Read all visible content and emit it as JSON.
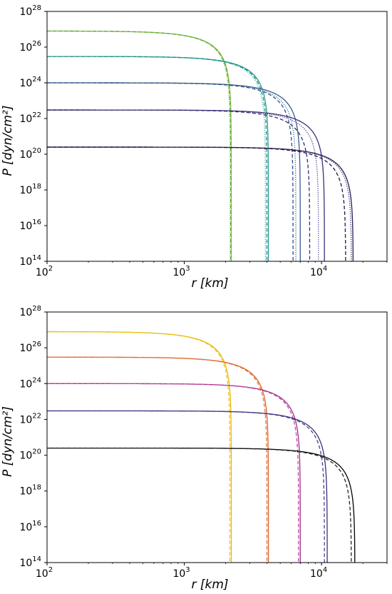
{
  "chart_data": [
    {
      "type": "line",
      "panel": "top",
      "xlabel": "r [km]",
      "ylabel": "P [dyn/cm²]",
      "xscale": "log",
      "yscale": "log",
      "xlim": [
        100,
        30000
      ],
      "ylim": [
        100000000000000.0,
        1e+28
      ],
      "x_ticks": [
        {
          "value": 100,
          "base": "10",
          "exp": "2"
        },
        {
          "value": 1000,
          "base": "10",
          "exp": "3"
        },
        {
          "value": 10000,
          "base": "10",
          "exp": "4"
        }
      ],
      "y_ticks": [
        {
          "value": 100000000000000.0,
          "base": "10",
          "exp": "14"
        },
        {
          "value": 1e+16,
          "base": "10",
          "exp": "16"
        },
        {
          "value": 1e+18,
          "base": "10",
          "exp": "18"
        },
        {
          "value": 1e+20,
          "base": "10",
          "exp": "20"
        },
        {
          "value": 1e+22,
          "base": "10",
          "exp": "22"
        },
        {
          "value": 1e+24,
          "base": "10",
          "exp": "24"
        },
        {
          "value": 1e+26,
          "base": "10",
          "exp": "26"
        },
        {
          "value": 1e+28,
          "base": "10",
          "exp": "28"
        }
      ],
      "grid": false,
      "legend": "none",
      "series": [
        {
          "color": "#7fbf3f",
          "central_pressure": 8e+26,
          "radius": 2200,
          "style": "solid"
        },
        {
          "color": "#9cc53c",
          "central_pressure": 8e+26,
          "radius": 2150,
          "style": "dotted"
        },
        {
          "color": "#5ea84b",
          "central_pressure": 8e+26,
          "radius": 2180,
          "style": "dashed"
        },
        {
          "color": "#2a9a8e",
          "central_pressure": 3e+25,
          "radius": 4100,
          "style": "solid"
        },
        {
          "color": "#35b39a",
          "central_pressure": 3e+25,
          "radius": 3900,
          "style": "dotted"
        },
        {
          "color": "#248a8c",
          "central_pressure": 3e+25,
          "radius": 4000,
          "style": "dashed"
        },
        {
          "color": "#3b5b8f",
          "central_pressure": 1e+24,
          "radius": 7000,
          "style": "solid"
        },
        {
          "color": "#3f6f95",
          "central_pressure": 1e+24,
          "radius": 6500,
          "style": "dotted"
        },
        {
          "color": "#2f4f86",
          "central_pressure": 1e+24,
          "radius": 6200,
          "style": "dashed"
        },
        {
          "color": "#3a2f7a",
          "central_pressure": 3e+22,
          "radius": 10500,
          "style": "solid"
        },
        {
          "color": "#3d3a86",
          "central_pressure": 3e+22,
          "radius": 9500,
          "style": "dotted"
        },
        {
          "color": "#362a70",
          "central_pressure": 3e+22,
          "radius": 8200,
          "style": "dashed"
        },
        {
          "color": "#2c1a55",
          "central_pressure": 2.5e+20,
          "radius": 17000,
          "style": "solid"
        },
        {
          "color": "#3b2a6e",
          "central_pressure": 2.5e+20,
          "radius": 16500,
          "style": "dotted"
        },
        {
          "color": "#261447",
          "central_pressure": 2.5e+20,
          "radius": 15000,
          "style": "dashed"
        }
      ]
    },
    {
      "type": "line",
      "panel": "bottom",
      "xlabel": "r [km]",
      "ylabel": "P [dyn/cm²]",
      "xscale": "log",
      "yscale": "log",
      "xlim": [
        100,
        30000
      ],
      "ylim": [
        100000000000000.0,
        1e+28
      ],
      "x_ticks": [
        {
          "value": 100,
          "base": "10",
          "exp": "2"
        },
        {
          "value": 1000,
          "base": "10",
          "exp": "3"
        },
        {
          "value": 10000,
          "base": "10",
          "exp": "4"
        }
      ],
      "y_ticks": [
        {
          "value": 100000000000000.0,
          "base": "10",
          "exp": "14"
        },
        {
          "value": 1e+16,
          "base": "10",
          "exp": "16"
        },
        {
          "value": 1e+18,
          "base": "10",
          "exp": "18"
        },
        {
          "value": 1e+20,
          "base": "10",
          "exp": "20"
        },
        {
          "value": 1e+22,
          "base": "10",
          "exp": "22"
        },
        {
          "value": 1e+24,
          "base": "10",
          "exp": "24"
        },
        {
          "value": 1e+26,
          "base": "10",
          "exp": "26"
        },
        {
          "value": 1e+28,
          "base": "10",
          "exp": "28"
        }
      ],
      "grid": false,
      "legend": "none",
      "series": [
        {
          "color": "#e8b800",
          "central_pressure": 8e+26,
          "radius": 2200,
          "style": "solid"
        },
        {
          "color": "#f0c419",
          "central_pressure": 8e+26,
          "radius": 2150,
          "style": "dashed"
        },
        {
          "color": "#d95f2b",
          "central_pressure": 3e+25,
          "radius": 4100,
          "style": "solid"
        },
        {
          "color": "#e07a3a",
          "central_pressure": 3e+25,
          "radius": 4000,
          "style": "dashed"
        },
        {
          "color": "#a02c8a",
          "central_pressure": 1e+24,
          "radius": 7000,
          "style": "solid"
        },
        {
          "color": "#c04aa0",
          "central_pressure": 1e+24,
          "radius": 6800,
          "style": "dashed"
        },
        {
          "color": "#3b2f7a",
          "central_pressure": 3e+22,
          "radius": 11000,
          "style": "solid"
        },
        {
          "color": "#4a3e8c",
          "central_pressure": 3e+22,
          "radius": 10500,
          "style": "dashed"
        },
        {
          "color": "#000000",
          "central_pressure": 2.5e+20,
          "radius": 17500,
          "style": "solid"
        },
        {
          "color": "#222222",
          "central_pressure": 2.5e+20,
          "radius": 16500,
          "style": "dashed"
        }
      ]
    }
  ]
}
